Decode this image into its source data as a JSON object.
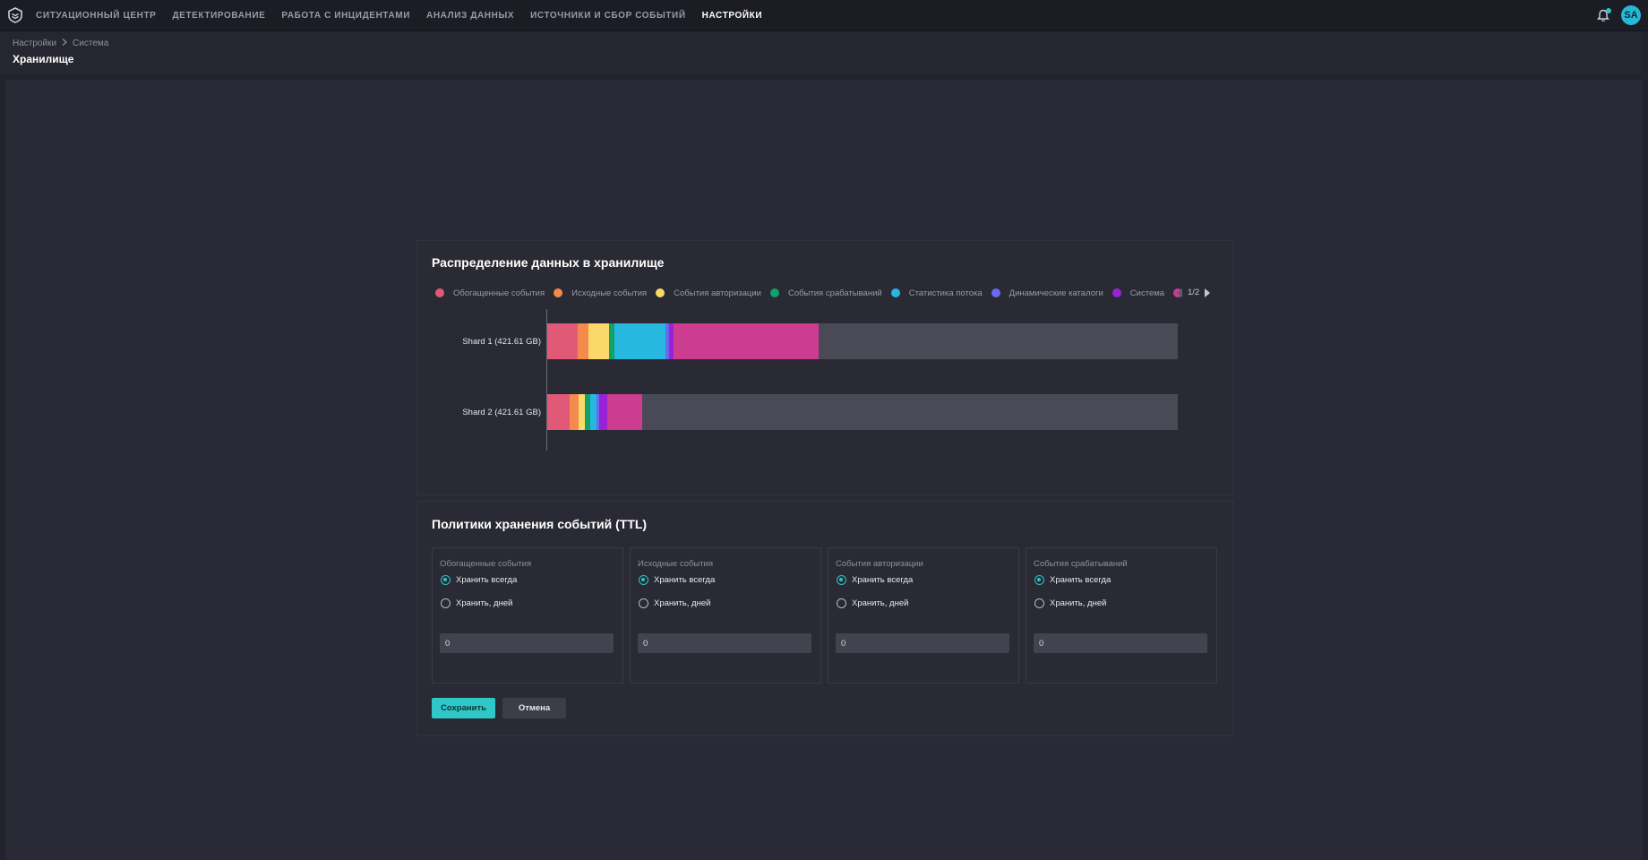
{
  "nav": {
    "items": [
      {
        "label": "СИТУАЦИОННЫЙ ЦЕНТР",
        "name": "nav-situation-center",
        "active": false
      },
      {
        "label": "ДЕТЕКТИРОВАНИЕ",
        "name": "nav-detection",
        "active": false
      },
      {
        "label": "РАБОТА С ИНЦИДЕНТАМИ",
        "name": "nav-incidents",
        "active": false
      },
      {
        "label": "АНАЛИЗ ДАННЫХ",
        "name": "nav-data-analysis",
        "active": false
      },
      {
        "label": "ИСТОЧНИКИ И СБОР СОБЫТИЙ",
        "name": "nav-sources",
        "active": false
      },
      {
        "label": "НАСТРОЙКИ",
        "name": "nav-settings",
        "active": true
      }
    ],
    "user_initials": "SA"
  },
  "header": {
    "breadcrumb": [
      "Настройки",
      "Система"
    ],
    "title": "Хранилище"
  },
  "storage": {
    "title": "Распределение данных в хранилище",
    "legend": [
      {
        "label": "Обогащенные события",
        "color": "#e05a78"
      },
      {
        "label": "Исходные события",
        "color": "#f48a4c"
      },
      {
        "label": "События авторизации",
        "color": "#fbd86a"
      },
      {
        "label": "События срабатываний",
        "color": "#10a06a"
      },
      {
        "label": "Статистика потока",
        "color": "#27b8e0"
      },
      {
        "label": "Динамические каталоги",
        "color": "#6a6af0"
      },
      {
        "label": "Система",
        "color": "#9a22d6"
      },
      {
        "label": "",
        "color": "#cc3c90"
      }
    ],
    "pager": "1/2"
  },
  "chart_data": {
    "type": "bar",
    "orientation": "horizontal",
    "stacked": true,
    "categories": [
      "Shard 1 (421.61 GB)",
      "Shard 2 (421.61 GB)"
    ],
    "remainder_color": "#4a4a57",
    "series": [
      {
        "name": "Обогащенные события",
        "color": "#e05a78",
        "values": [
          4.8,
          3.5
        ]
      },
      {
        "name": "Исходные события",
        "color": "#f48a4c",
        "values": [
          1.7,
          1.5
        ]
      },
      {
        "name": "События авторизации",
        "color": "#fbd86a",
        "values": [
          3.3,
          1.0
        ]
      },
      {
        "name": "События срабатываний",
        "color": "#10a06a",
        "values": [
          0.8,
          0.8
        ]
      },
      {
        "name": "Статистика потока",
        "color": "#27b8e0",
        "values": [
          8.2,
          1.0
        ]
      },
      {
        "name": "Динамические каталоги",
        "color": "#6a6af0",
        "values": [
          0.5,
          0.4
        ]
      },
      {
        "name": "Система",
        "color": "#9a22d6",
        "values": [
          0.7,
          1.3
        ]
      },
      {
        "name": "",
        "color": "#cc3c90",
        "values": [
          23.0,
          5.6
        ]
      }
    ]
  },
  "ttl": {
    "title": "Политики хранения событий (TTL)",
    "cards": [
      {
        "title": "Обогащенные события",
        "option_always": "Хранить всегда",
        "option_days": "Хранить, дней",
        "selected": "always",
        "days": "0"
      },
      {
        "title": "Исходные события",
        "option_always": "Хранить всегда",
        "option_days": "Хранить, дней",
        "selected": "always",
        "days": "0"
      },
      {
        "title": "События авторизации",
        "option_always": "Хранить всегда",
        "option_days": "Хранить, дней",
        "selected": "always",
        "days": "0"
      },
      {
        "title": "События срабатываний",
        "option_always": "Хранить всегда",
        "option_days": "Хранить, дней",
        "selected": "always",
        "days": "0"
      }
    ],
    "save_label": "Сохранить",
    "cancel_label": "Отмена"
  }
}
